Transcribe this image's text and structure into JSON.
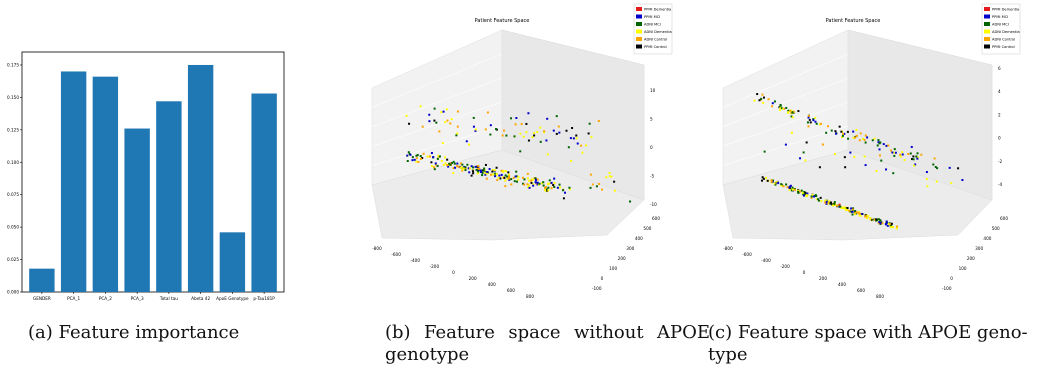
{
  "captions": {
    "a": "(a) Feature importance",
    "b": "(b) Feature space without APOE genotype",
    "c": "(c) Feature space with APOE geno- type"
  },
  "colors": {
    "bar": "#1f77b4",
    "ppmi_dementia": "#e41a1c",
    "ppmi_mci": "#0000cc",
    "adni_mci": "#006400",
    "adni_dementia": "#ffff00",
    "adni_control": "#ffa500",
    "ppmi_control": "#000000"
  },
  "chart_data": [
    {
      "type": "bar",
      "categories": [
        "GENDER",
        "PCA_1",
        "PCA_2",
        "PCA_3",
        "Total tau",
        "Abeta 42",
        "ApoE Genotype",
        "p-Tau181P"
      ],
      "values": [
        0.018,
        0.17,
        0.166,
        0.126,
        0.147,
        0.175,
        0.046,
        0.153
      ],
      "yticks": [
        "0.000",
        "0.025",
        "0.050",
        "0.075",
        "0.100",
        "0.125",
        "0.150",
        "0.175"
      ],
      "ylim": [
        0,
        0.185
      ],
      "title": "",
      "xlabel": "",
      "ylabel": ""
    },
    {
      "type": "scatter",
      "title": "Patient Feature Space",
      "legend": [
        "PPMI Dementia",
        "PPMI MCI",
        "ADNI MCI",
        "ADNI Dementia",
        "ADNI Control",
        "PPMI Control"
      ],
      "legend_position": "top-right",
      "x_ticks": [
        "-800",
        "-600",
        "-400",
        "-200",
        "0",
        "200",
        "400",
        "600",
        "800"
      ],
      "y_ticks": [
        "-100",
        "0",
        "100",
        "200",
        "300",
        "400",
        "500",
        "600"
      ],
      "z_ticks": [
        "-10",
        "-5",
        "0",
        "5",
        "10"
      ]
    },
    {
      "type": "scatter",
      "title": "Patient Feature Space",
      "legend": [
        "PPMI Dementia",
        "PPMI MCI",
        "ADNI MCI",
        "ADNI Dementia",
        "ADNI Control",
        "PPMI Control"
      ],
      "legend_position": "top-right",
      "x_ticks": [
        "-800",
        "-600",
        "-400",
        "-200",
        "0",
        "200",
        "400",
        "600",
        "800"
      ],
      "y_ticks": [
        "-100",
        "0",
        "100",
        "200",
        "300",
        "400",
        "500",
        "600"
      ],
      "z_ticks": [
        "-4",
        "-2",
        "0",
        "2",
        "4",
        "6"
      ]
    }
  ]
}
